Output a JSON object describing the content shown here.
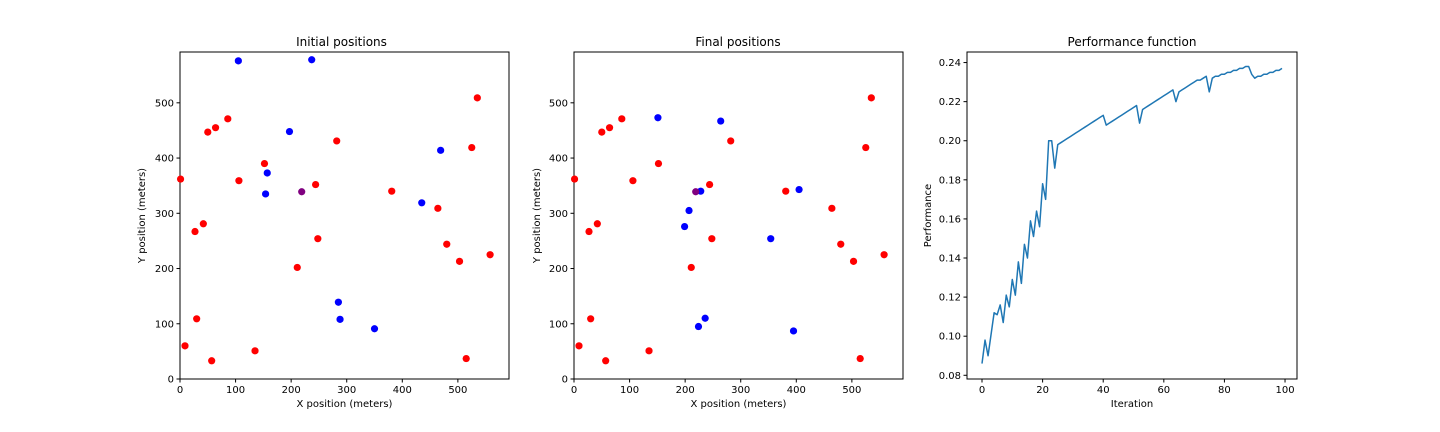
{
  "chart_data": [
    {
      "type": "scatter",
      "title": "Initial positions",
      "xlabel": "X position (meters)",
      "ylabel": "Y position (meters)",
      "xlim": [
        0,
        592
      ],
      "ylim": [
        0,
        592
      ],
      "xticks": [
        0,
        100,
        200,
        300,
        400,
        500
      ],
      "yticks": [
        0,
        100,
        200,
        300,
        400,
        500
      ],
      "grid": false,
      "series": [
        {
          "color": "#ff0000",
          "points": [
            [
              1,
              362
            ],
            [
              9,
              60
            ],
            [
              27,
              267
            ],
            [
              30,
              109
            ],
            [
              42,
              281
            ],
            [
              50,
              447
            ],
            [
              57,
              33
            ],
            [
              64,
              455
            ],
            [
              86,
              471
            ],
            [
              106,
              359
            ],
            [
              135,
              51
            ],
            [
              152,
              390
            ],
            [
              211,
              202
            ],
            [
              244,
              352
            ],
            [
              248,
              254
            ],
            [
              282,
              431
            ],
            [
              381,
              340
            ],
            [
              464,
              309
            ],
            [
              480,
              244
            ],
            [
              503,
              213
            ],
            [
              515,
              37
            ],
            [
              525,
              419
            ],
            [
              535,
              509
            ],
            [
              558,
              225
            ]
          ]
        },
        {
          "color": "#0000ff",
          "points": [
            [
              105,
              576
            ],
            [
              154,
              335
            ],
            [
              157,
              373
            ],
            [
              197,
              448
            ],
            [
              237,
              578
            ],
            [
              285,
              139
            ],
            [
              288,
              108
            ],
            [
              350,
              91
            ],
            [
              435,
              319
            ],
            [
              469,
              414
            ]
          ]
        },
        {
          "color": "#800080",
          "points": [
            [
              219,
              339
            ]
          ]
        }
      ]
    },
    {
      "type": "scatter",
      "title": "Final positions",
      "xlabel": "X position (meters)",
      "ylabel": "Y position (meters)",
      "xlim": [
        0,
        592
      ],
      "ylim": [
        0,
        592
      ],
      "xticks": [
        0,
        100,
        200,
        300,
        400,
        500
      ],
      "yticks": [
        0,
        100,
        200,
        300,
        400,
        500
      ],
      "grid": false,
      "series": [
        {
          "color": "#ff0000",
          "points": [
            [
              1,
              362
            ],
            [
              9,
              60
            ],
            [
              27,
              267
            ],
            [
              30,
              109
            ],
            [
              42,
              281
            ],
            [
              50,
              447
            ],
            [
              57,
              33
            ],
            [
              64,
              455
            ],
            [
              86,
              471
            ],
            [
              106,
              359
            ],
            [
              135,
              51
            ],
            [
              152,
              390
            ],
            [
              211,
              202
            ],
            [
              244,
              352
            ],
            [
              248,
              254
            ],
            [
              282,
              431
            ],
            [
              381,
              340
            ],
            [
              464,
              309
            ],
            [
              480,
              244
            ],
            [
              503,
              213
            ],
            [
              515,
              37
            ],
            [
              525,
              419
            ],
            [
              535,
              509
            ],
            [
              558,
              225
            ]
          ]
        },
        {
          "color": "#0000ff",
          "points": [
            [
              151,
              473
            ],
            [
              199,
              276
            ],
            [
              207,
              305
            ],
            [
              224,
              95
            ],
            [
              228,
              340
            ],
            [
              236,
              110
            ],
            [
              264,
              467
            ],
            [
              354,
              254
            ],
            [
              395,
              87
            ],
            [
              405,
              343
            ]
          ]
        },
        {
          "color": "#800080",
          "points": [
            [
              219,
              339
            ]
          ]
        }
      ]
    },
    {
      "type": "line",
      "title": "Performance function",
      "xlabel": "Iteration",
      "ylabel": "Performance",
      "xlim": [
        -4.95,
        103.95
      ],
      "ylim": [
        0.0781,
        0.2454
      ],
      "xticks": [
        0,
        20,
        40,
        60,
        80,
        100
      ],
      "yticks": [
        0.08,
        0.1,
        0.12,
        0.14,
        0.16,
        0.18,
        0.2,
        0.22,
        0.24
      ],
      "ytick_labels": [
        "0.08",
        "0.10",
        "0.12",
        "0.14",
        "0.16",
        "0.18",
        "0.20",
        "0.22",
        "0.24"
      ],
      "grid": false,
      "series": [
        {
          "color": "#1f77b4",
          "x": [
            0,
            1,
            2,
            3,
            4,
            5,
            6,
            7,
            8,
            9,
            10,
            11,
            12,
            13,
            14,
            15,
            16,
            17,
            18,
            19,
            20,
            21,
            22,
            23,
            24,
            25,
            26,
            27,
            28,
            29,
            30,
            31,
            32,
            33,
            34,
            35,
            36,
            37,
            38,
            39,
            40,
            41,
            42,
            43,
            44,
            45,
            46,
            47,
            48,
            49,
            50,
            51,
            52,
            53,
            54,
            55,
            56,
            57,
            58,
            59,
            60,
            61,
            62,
            63,
            64,
            65,
            66,
            67,
            68,
            69,
            70,
            71,
            72,
            73,
            74,
            75,
            76,
            77,
            78,
            79,
            80,
            81,
            82,
            83,
            84,
            85,
            86,
            87,
            88,
            89,
            90,
            91,
            92,
            93,
            94,
            95,
            96,
            97,
            98,
            99
          ],
          "y": [
            0.086,
            0.098,
            0.09,
            0.101,
            0.112,
            0.111,
            0.116,
            0.107,
            0.121,
            0.115,
            0.129,
            0.121,
            0.138,
            0.127,
            0.147,
            0.14,
            0.159,
            0.151,
            0.164,
            0.156,
            0.178,
            0.17,
            0.2,
            0.2,
            0.186,
            0.198,
            0.199,
            0.2,
            0.201,
            0.202,
            0.203,
            0.204,
            0.205,
            0.206,
            0.207,
            0.208,
            0.209,
            0.21,
            0.211,
            0.212,
            0.213,
            0.208,
            0.209,
            0.21,
            0.211,
            0.212,
            0.213,
            0.214,
            0.215,
            0.216,
            0.217,
            0.218,
            0.209,
            0.216,
            0.217,
            0.218,
            0.219,
            0.22,
            0.221,
            0.222,
            0.223,
            0.224,
            0.225,
            0.226,
            0.22,
            0.225,
            0.226,
            0.227,
            0.228,
            0.229,
            0.23,
            0.231,
            0.231,
            0.232,
            0.233,
            0.225,
            0.232,
            0.233,
            0.233,
            0.234,
            0.234,
            0.235,
            0.235,
            0.236,
            0.236,
            0.237,
            0.237,
            0.238,
            0.238,
            0.234,
            0.232,
            0.233,
            0.233,
            0.234,
            0.234,
            0.235,
            0.235,
            0.236,
            0.236,
            0.237
          ]
        }
      ]
    }
  ]
}
